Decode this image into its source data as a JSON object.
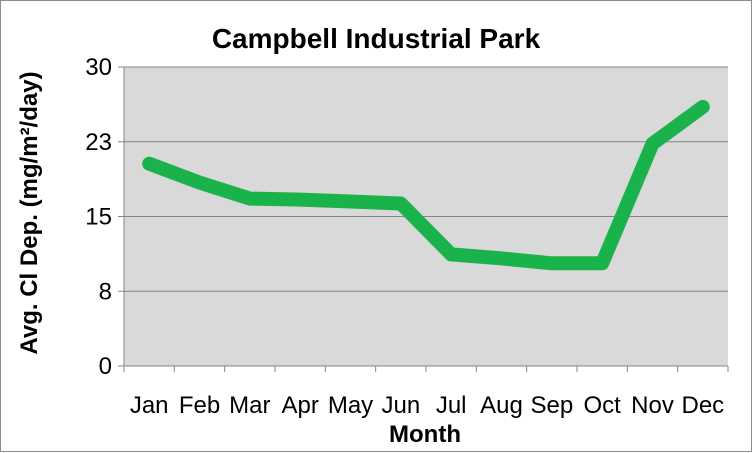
{
  "chart_data": {
    "type": "line",
    "title": "Campbell Industrial Park",
    "xlabel": "Month",
    "ylabel": "Avg. Cl Dep. (mg/m²/day)",
    "categories": [
      "Jan",
      "Feb",
      "Mar",
      "Apr",
      "May",
      "Jun",
      "Jul",
      "Aug",
      "Sep",
      "Oct",
      "Nov",
      "Dec"
    ],
    "series": [
      {
        "values": [
          20.3,
          18.4,
          16.8,
          16.7,
          16.5,
          16.3,
          11.2,
          10.8,
          10.3,
          10.3,
          22.3,
          26.0
        ],
        "color": "#1ab24a"
      }
    ],
    "yticks": [
      "0",
      "8",
      "15",
      "23",
      "30"
    ],
    "ylim": [
      0,
      30
    ],
    "grid": true,
    "plot_background": "#d9d9d9"
  }
}
